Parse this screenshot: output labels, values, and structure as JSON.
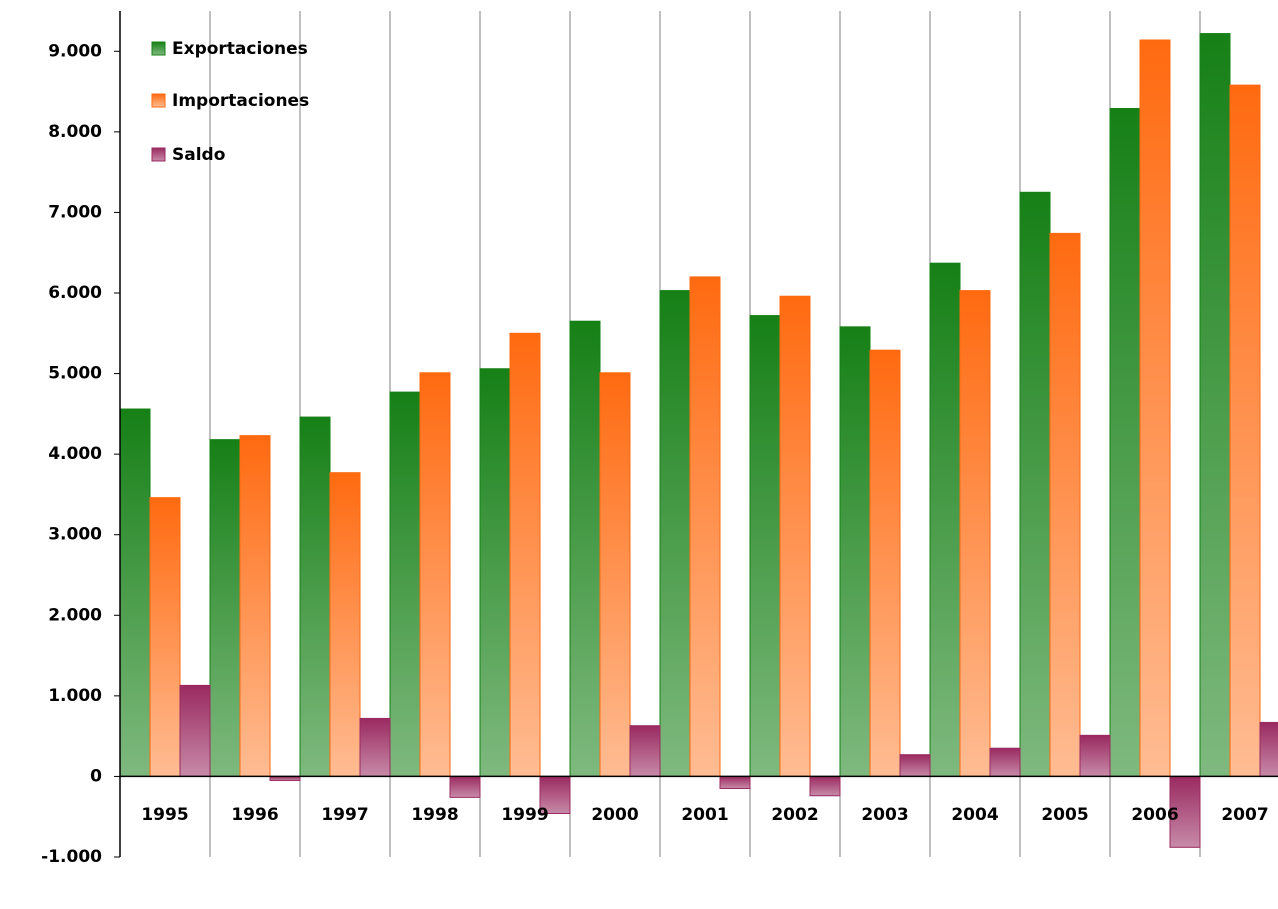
{
  "chart_data": {
    "type": "bar",
    "categories": [
      "1995",
      "1996",
      "1997",
      "1998",
      "1999",
      "2000",
      "2001",
      "2002",
      "2003",
      "2004",
      "2005",
      "2006",
      "2007"
    ],
    "series": [
      {
        "name": "Exportaciones",
        "color": "#168016",
        "values": [
          4560,
          4180,
          4460,
          4770,
          5060,
          5650,
          6030,
          5720,
          5580,
          6370,
          7250,
          8290,
          9220
        ]
      },
      {
        "name": "Importaciones",
        "color": "#ff6a10",
        "values": [
          3460,
          4230,
          3770,
          5010,
          5500,
          5010,
          6200,
          5960,
          5290,
          6030,
          6740,
          9140,
          8580
        ]
      },
      {
        "name": "Saldo",
        "color": "#9a2a60",
        "values": [
          1130,
          -50,
          720,
          -260,
          -460,
          630,
          -150,
          -240,
          270,
          350,
          510,
          -880,
          670
        ]
      }
    ],
    "ylim": [
      -1000,
      9500
    ],
    "yticks": [
      {
        "value": -1000,
        "label": "-1.000"
      },
      0,
      {
        "value": 1000,
        "label": "1.000"
      },
      {
        "value": 2000,
        "label": "2.000"
      },
      {
        "value": 3000,
        "label": "3.000"
      },
      {
        "value": 4000,
        "label": "4.000"
      },
      {
        "value": 5000,
        "label": "5.000"
      },
      {
        "value": 6000,
        "label": "6.000"
      },
      {
        "value": 7000,
        "label": "7.000"
      },
      {
        "value": 8000,
        "label": "8.000"
      },
      {
        "value": 9000,
        "label": "9.000"
      }
    ],
    "legend": "top-left"
  }
}
